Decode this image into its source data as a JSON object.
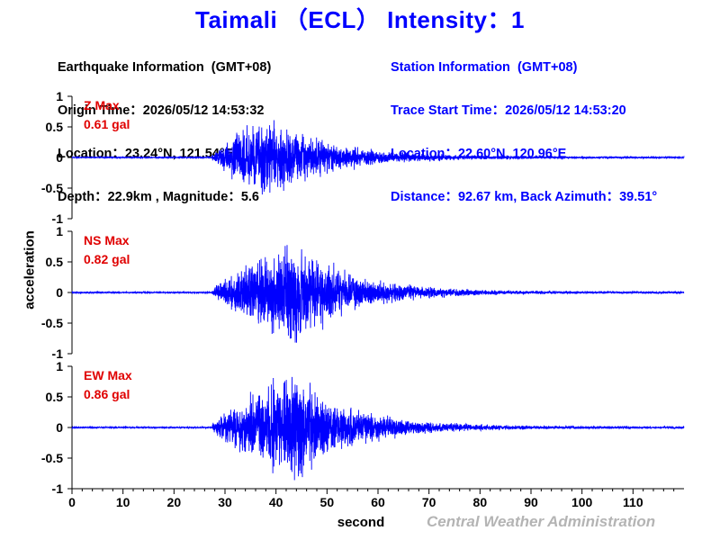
{
  "title": "Taimali （ECL） Intensity：1",
  "earthquake_info": {
    "heading": "Earthquake Information  (GMT+08)",
    "origin_time": "Origin Time：2026/05/12 14:53:32",
    "location": "Location：23.24°N, 121.54°E",
    "depth_magnitude": "Depth：22.9km , Magnitude：5.6"
  },
  "station_info": {
    "heading": "Station Information  (GMT+08)",
    "trace_start": "Trace Start Time：2026/05/12 14:53:20",
    "location": "Location：22.60°N, 120.96°E",
    "distance": "Distance：92.67 km, Back Azimuth：39.51°"
  },
  "agency": "Central Weather Administration",
  "chart_data": {
    "type": "line",
    "xlabel": "second",
    "ylabel": "acceleration",
    "xlim": [
      0,
      120
    ],
    "x_ticks": [
      0,
      10,
      20,
      30,
      40,
      50,
      60,
      70,
      80,
      90,
      100,
      110
    ],
    "ylim": [
      -1,
      1
    ],
    "y_ticks": [
      1,
      0.5,
      0,
      -0.5,
      -1
    ],
    "y_tick_labels": [
      "1",
      "0.5",
      "0",
      "-0.5",
      "-1"
    ],
    "line_color": "#0000ff",
    "label_color": "#e00000",
    "grid": false,
    "panels": [
      {
        "name": "Z Max",
        "max_label": "0.61 gal",
        "peak": 0.61,
        "onset": 27.5,
        "peak_time": 38,
        "decay": 12,
        "seed": 11
      },
      {
        "name": "NS Max",
        "max_label": "0.82 gal",
        "peak": 0.82,
        "onset": 27.5,
        "peak_time": 43,
        "decay": 11,
        "seed": 23
      },
      {
        "name": "EW Max",
        "max_label": "0.86 gal",
        "peak": 0.86,
        "onset": 27.5,
        "peak_time": 43,
        "decay": 11,
        "seed": 37
      }
    ]
  }
}
